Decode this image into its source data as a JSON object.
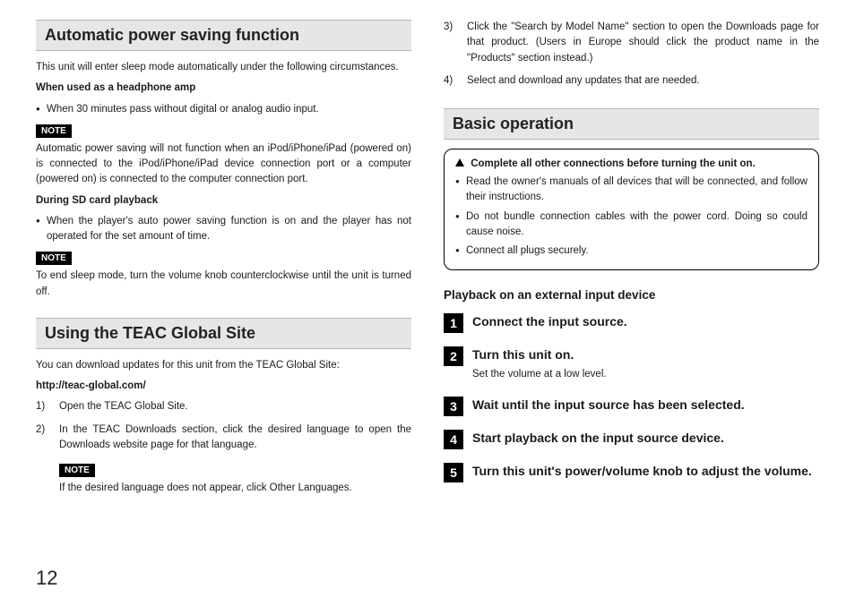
{
  "page_number": "12",
  "colors": {
    "header_bg": "#e6e6e6",
    "header_border": "#b5b5b5",
    "note_bg": "#000000",
    "note_fg": "#ffffff",
    "text": "#1a1a1a"
  },
  "left": {
    "sec1": {
      "title": "Automatic power saving function",
      "intro": "This unit will enter sleep mode automatically under the following circumstances.",
      "sub1_title": "When used as a headphone amp",
      "sub1_bullet": "When 30 minutes pass without digital or analog audio input.",
      "note_label": "NOTE",
      "note1_text": "Automatic power saving will not function when an iPod/iPhone/iPad (powered on) is connected to the iPod/iPhone/iPad device connection port or a computer (powered on) is connected to the computer connection port.",
      "sub2_title": "During SD card playback",
      "sub2_bullet": "When the player's auto power saving function is on and the player has not operated for the set amount of time.",
      "note2_text": "To end sleep mode, turn the volume knob counterclockwise until the unit is turned off."
    },
    "sec2": {
      "title": "Using the TEAC Global Site",
      "intro": "You can download updates for this unit from the TEAC Global Site:",
      "url": "http://teac-global.com/",
      "step1_n": "1)",
      "step1_t": "Open the TEAC Global Site.",
      "step2_n": "2)",
      "step2_t": "In the TEAC Downloads section, click the desired language to open the Downloads website page for that language.",
      "note_label": "NOTE",
      "note_text": "If the desired language does not appear, click Other Languages."
    }
  },
  "right": {
    "cont": {
      "step3_n": "3)",
      "step3_t": "Click the \"Search by Model Name\" section to open the Downloads page for that product. (Users in Europe should click the product name in the \"Products\" section instead.)",
      "step4_n": "4)",
      "step4_t": "Select and download any updates that are needed."
    },
    "sec3": {
      "title": "Basic operation",
      "callout_hdr": "Complete all other connections before turning the unit on.",
      "callout_b1": "Read the owner's manuals of all devices that will be connected, and follow their instructions.",
      "callout_b2": "Do not bundle connection cables with the power cord. Doing so could cause noise.",
      "callout_b3": "Connect all plugs securely.",
      "subhead": "Playback on an external input device",
      "steps": [
        {
          "n": "1",
          "t": "Connect the input source."
        },
        {
          "n": "2",
          "t": "Turn this unit on.",
          "sub": "Set the volume at a low level."
        },
        {
          "n": "3",
          "t": "Wait until the input source has been selected."
        },
        {
          "n": "4",
          "t": "Start playback on the input source device."
        },
        {
          "n": "5",
          "t": "Turn this unit's power/volume knob to adjust the volume."
        }
      ]
    }
  }
}
